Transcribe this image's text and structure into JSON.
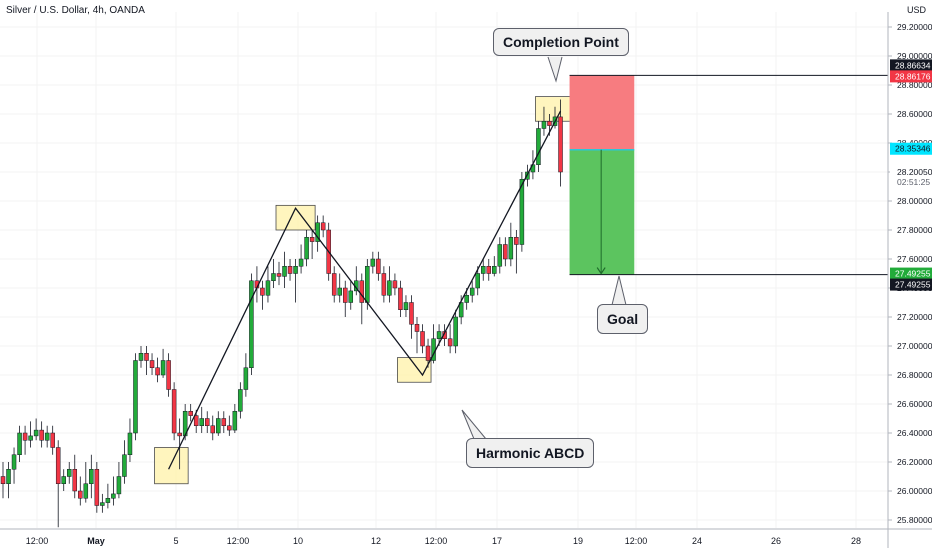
{
  "header": {
    "symbol": "Silver / U.S. Dollar, 4h, OANDA",
    "currency": "USD"
  },
  "callouts": {
    "completion": "Completion Point",
    "goal": "Goal",
    "pattern": "Harmonic ABCD"
  },
  "price_badges": [
    {
      "label": "28.86634",
      "bg": "#131722",
      "fg": "#ffffff"
    },
    {
      "label": "28.86176",
      "bg": "#f23645",
      "fg": "#ffffff"
    },
    {
      "label": "28.35346",
      "bg": "#00e5ff",
      "fg": "#131722"
    },
    {
      "label": "27.49255",
      "bg": "#22ab3a",
      "fg": "#ffffff"
    },
    {
      "label": "27.49255",
      "bg": "#131722",
      "fg": "#ffffff"
    }
  ],
  "countdown": {
    "price": "28.20050",
    "time": "02:51:25"
  },
  "colors": {
    "up": "#22ab3a",
    "down": "#f23645",
    "stop_zone": "#f77c80",
    "target_zone": "#5cc45f",
    "highlight": "#fff2a8"
  },
  "chart_data": {
    "type": "candlestick",
    "title": "Silver / U.S. Dollar, 4h, OANDA",
    "y_axis": {
      "unit": "USD",
      "ticks": [
        "29.20000",
        "29.00000",
        "28.80000",
        "28.60000",
        "28.40000",
        "28.20000",
        "28.00000",
        "27.80000",
        "27.60000",
        "27.40000",
        "27.20000",
        "27.00000",
        "26.80000",
        "26.60000",
        "26.40000",
        "26.20000",
        "26.00000",
        "25.80000"
      ],
      "range": [
        25.7,
        29.3
      ]
    },
    "x_axis": {
      "ticks": [
        "12:00",
        "May",
        "5",
        "12:00",
        "10",
        "12",
        "12:00",
        "17",
        "19",
        "12:00",
        "24",
        "26",
        "28"
      ]
    },
    "candles": [
      [
        26.1,
        26.05,
        26.2,
        25.95
      ],
      [
        26.05,
        26.15,
        26.2,
        25.95
      ],
      [
        26.15,
        26.25,
        26.3,
        26.05
      ],
      [
        26.25,
        26.4,
        26.45,
        26.2
      ],
      [
        26.4,
        26.35,
        26.45,
        26.25
      ],
      [
        26.35,
        26.38,
        26.48,
        26.3
      ],
      [
        26.38,
        26.42,
        26.5,
        26.35
      ],
      [
        26.42,
        26.35,
        26.48,
        26.3
      ],
      [
        26.35,
        26.4,
        26.45,
        26.3
      ],
      [
        26.4,
        26.3,
        26.45,
        26.25
      ],
      [
        26.3,
        26.05,
        26.35,
        25.75
      ],
      [
        26.05,
        26.1,
        26.15,
        26.0
      ],
      [
        26.1,
        26.15,
        26.2,
        26.05
      ],
      [
        26.15,
        26.0,
        26.25,
        25.95
      ],
      [
        26.0,
        25.95,
        26.1,
        25.9
      ],
      [
        25.95,
        26.05,
        26.2,
        25.92
      ],
      [
        26.05,
        26.15,
        26.25,
        25.95
      ],
      [
        26.15,
        25.9,
        26.2,
        25.85
      ],
      [
        25.9,
        25.92,
        25.98,
        25.85
      ],
      [
        25.92,
        25.95,
        26.05,
        25.88
      ],
      [
        25.95,
        25.98,
        26.1,
        25.9
      ],
      [
        25.98,
        26.1,
        26.2,
        25.95
      ],
      [
        26.1,
        26.25,
        26.35,
        26.05
      ],
      [
        26.25,
        26.4,
        26.5,
        26.2
      ],
      [
        26.4,
        26.9,
        26.95,
        26.35
      ],
      [
        26.9,
        26.95,
        27.0,
        26.85
      ],
      [
        26.95,
        26.9,
        27.0,
        26.8
      ],
      [
        26.9,
        26.85,
        26.95,
        26.8
      ],
      [
        26.85,
        26.8,
        26.92,
        26.75
      ],
      [
        26.8,
        26.9,
        26.98,
        26.78
      ],
      [
        26.9,
        26.7,
        26.95,
        26.65
      ],
      [
        26.7,
        26.4,
        26.75,
        26.35
      ],
      [
        26.4,
        26.38,
        26.5,
        26.15
      ],
      [
        26.38,
        26.55,
        26.6,
        26.35
      ],
      [
        26.55,
        26.52,
        26.6,
        26.48
      ],
      [
        26.52,
        26.45,
        26.56,
        26.4
      ],
      [
        26.45,
        26.5,
        26.58,
        26.4
      ],
      [
        26.5,
        26.45,
        26.55,
        26.4
      ],
      [
        26.45,
        26.4,
        26.52,
        26.35
      ],
      [
        26.4,
        26.5,
        26.55,
        26.38
      ],
      [
        26.5,
        26.45,
        26.55,
        26.4
      ],
      [
        26.45,
        26.42,
        26.52,
        26.38
      ],
      [
        26.42,
        26.55,
        26.6,
        26.4
      ],
      [
        26.55,
        26.7,
        26.75,
        26.5
      ],
      [
        26.7,
        26.85,
        26.95,
        26.65
      ],
      [
        26.85,
        27.45,
        27.5,
        26.8
      ],
      [
        27.45,
        27.4,
        27.55,
        27.3
      ],
      [
        27.4,
        27.35,
        27.45,
        27.25
      ],
      [
        27.35,
        27.45,
        27.55,
        27.3
      ],
      [
        27.45,
        27.5,
        27.6,
        27.4
      ],
      [
        27.5,
        27.48,
        27.58,
        27.42
      ],
      [
        27.48,
        27.55,
        27.65,
        27.4
      ],
      [
        27.55,
        27.5,
        27.6,
        27.45
      ],
      [
        27.5,
        27.55,
        27.6,
        27.3
      ],
      [
        27.55,
        27.6,
        27.7,
        27.5
      ],
      [
        27.6,
        27.75,
        27.8,
        27.55
      ],
      [
        27.75,
        27.72,
        27.8,
        27.6
      ],
      [
        27.72,
        27.85,
        27.9,
        27.65
      ],
      [
        27.85,
        27.8,
        27.9,
        27.75
      ],
      [
        27.8,
        27.5,
        27.85,
        27.45
      ],
      [
        27.5,
        27.35,
        27.55,
        27.3
      ],
      [
        27.35,
        27.4,
        27.5,
        27.3
      ],
      [
        27.4,
        27.3,
        27.45,
        27.2
      ],
      [
        27.3,
        27.38,
        27.45,
        27.25
      ],
      [
        27.38,
        27.45,
        27.55,
        27.35
      ],
      [
        27.45,
        27.3,
        27.5,
        27.15
      ],
      [
        27.3,
        27.55,
        27.6,
        27.25
      ],
      [
        27.55,
        27.6,
        27.65,
        27.5
      ],
      [
        27.6,
        27.5,
        27.65,
        27.45
      ],
      [
        27.5,
        27.35,
        27.55,
        27.3
      ],
      [
        27.35,
        27.45,
        27.55,
        27.3
      ],
      [
        27.45,
        27.4,
        27.5,
        27.35
      ],
      [
        27.4,
        27.25,
        27.45,
        27.2
      ],
      [
        27.25,
        27.3,
        27.35,
        27.2
      ],
      [
        27.3,
        27.15,
        27.35,
        27.05
      ],
      [
        27.15,
        27.1,
        27.2,
        26.95
      ],
      [
        27.1,
        27.0,
        27.15,
        26.95
      ],
      [
        27.0,
        26.9,
        27.05,
        26.85
      ],
      [
        26.9,
        27.05,
        27.15,
        26.88
      ],
      [
        27.05,
        27.1,
        27.15,
        27.0
      ],
      [
        27.1,
        27.05,
        27.15,
        27.0
      ],
      [
        27.05,
        27.0,
        27.15,
        26.95
      ],
      [
        27.0,
        27.2,
        27.25,
        26.95
      ],
      [
        27.2,
        27.3,
        27.35,
        27.15
      ],
      [
        27.3,
        27.35,
        27.4,
        27.25
      ],
      [
        27.35,
        27.4,
        27.45,
        27.3
      ],
      [
        27.4,
        27.5,
        27.55,
        27.35
      ],
      [
        27.5,
        27.55,
        27.6,
        27.45
      ],
      [
        27.55,
        27.5,
        27.6,
        27.45
      ],
      [
        27.5,
        27.55,
        27.62,
        27.48
      ],
      [
        27.55,
        27.7,
        27.75,
        27.5
      ],
      [
        27.7,
        27.6,
        27.75,
        27.55
      ],
      [
        27.6,
        27.75,
        27.85,
        27.55
      ],
      [
        27.75,
        27.7,
        27.8,
        27.5
      ],
      [
        27.7,
        28.15,
        28.2,
        27.65
      ],
      [
        28.15,
        28.2,
        28.25,
        28.1
      ],
      [
        28.2,
        28.25,
        28.35,
        28.15
      ],
      [
        28.25,
        28.5,
        28.55,
        28.2
      ],
      [
        28.5,
        28.55,
        28.65,
        28.45
      ],
      [
        28.55,
        28.52,
        28.6,
        28.45
      ],
      [
        28.52,
        28.58,
        28.65,
        28.5
      ],
      [
        28.58,
        28.2,
        28.7,
        28.1
      ]
    ],
    "abcd": {
      "A": [
        30,
        26.15
      ],
      "B": [
        53,
        27.95
      ],
      "C": [
        76,
        26.8
      ],
      "D": [
        101,
        28.62
      ]
    },
    "zones": [
      {
        "name": "A",
        "from": 28,
        "to": 33,
        "low": 26.05,
        "high": 26.3
      },
      {
        "name": "B",
        "from": 50,
        "to": 56,
        "low": 27.8,
        "high": 27.97
      },
      {
        "name": "C",
        "from": 72,
        "to": 77,
        "low": 26.75,
        "high": 26.92
      },
      {
        "name": "D",
        "from": 97,
        "to": 103,
        "low": 28.55,
        "high": 28.72
      }
    ],
    "position": {
      "from": 103,
      "to": 114,
      "stop": 28.86634,
      "entry": 28.35346,
      "target": 27.49255
    },
    "short_arrow": {
      "at": 108,
      "from": 28.35346,
      "to": 27.49255
    }
  }
}
